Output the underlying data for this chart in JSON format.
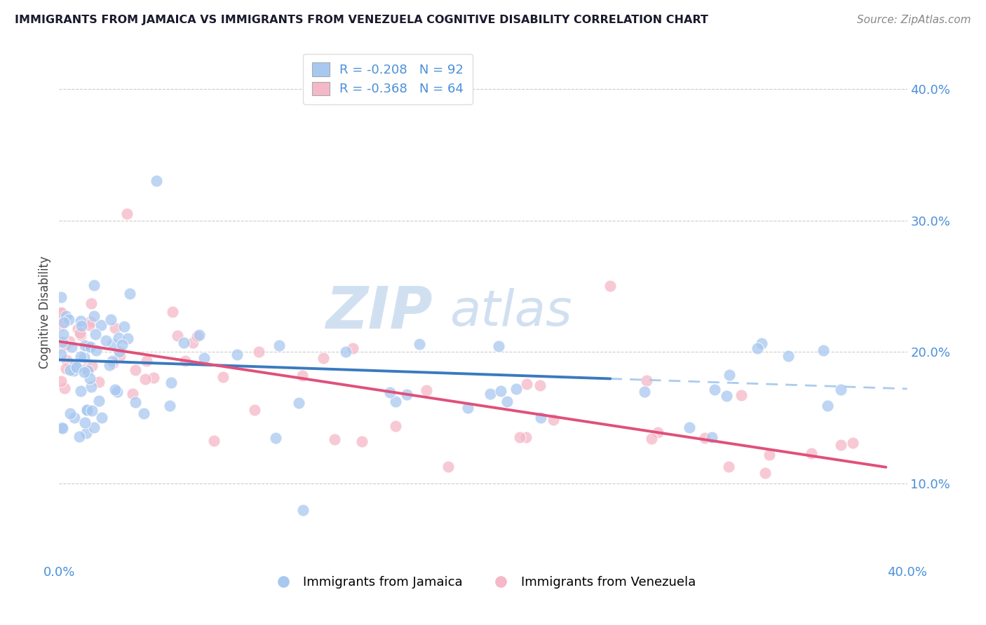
{
  "title": "IMMIGRANTS FROM JAMAICA VS IMMIGRANTS FROM VENEZUELA COGNITIVE DISABILITY CORRELATION CHART",
  "source": "Source: ZipAtlas.com",
  "ylabel": "Cognitive Disability",
  "xlim": [
    0.0,
    0.4
  ],
  "ylim": [
    0.04,
    0.42
  ],
  "r_jamaica": -0.208,
  "n_jamaica": 92,
  "r_venezuela": -0.368,
  "n_venezuela": 64,
  "color_jamaica": "#a8c8f0",
  "color_venezuela": "#f5b8c8",
  "line_color_jamaica": "#3a7abf",
  "line_color_venezuela": "#e0507a",
  "line_dashed_color": "#aaccee",
  "axis_label_color": "#4a90d9",
  "title_color": "#1a1a2e",
  "source_color": "#888888",
  "watermark": "ZIPatlas",
  "grid_color": "#cccccc",
  "label_jamaica": "Immigrants from Jamaica",
  "label_venezuela": "Immigrants from Venezuela",
  "legend_text_color": "#4a90d9",
  "jamaica_line_x_solid_end": 0.26,
  "jamaica_line_x_dashed_start": 0.26,
  "jamaica_line_intercept": 0.194,
  "jamaica_line_slope": -0.055,
  "venezuela_line_intercept": 0.208,
  "venezuela_line_slope": -0.245
}
